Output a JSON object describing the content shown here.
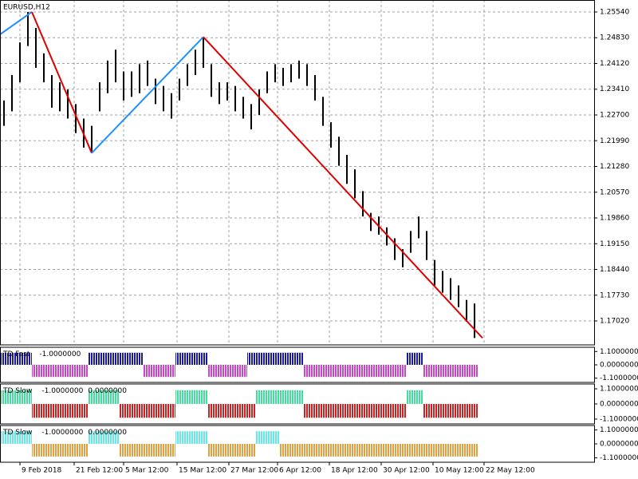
{
  "chart_data": [
    {
      "type": "ohlc",
      "title": "EURUSD,H12",
      "high": [
        1.231,
        1.238,
        1.247,
        1.2554,
        1.251,
        1.244,
        1.238,
        1.236,
        1.234,
        1.23,
        1.226,
        1.224,
        1.236,
        1.242,
        1.245,
        1.239,
        1.239,
        1.241,
        1.242,
        1.237,
        1.235,
        1.233,
        1.237,
        1.241,
        1.245,
        1.2485,
        1.241,
        1.236,
        1.236,
        1.235,
        1.232,
        1.23,
        1.234,
        1.239,
        1.241,
        1.24,
        1.241,
        1.242,
        1.241,
        1.238,
        1.232,
        1.225,
        1.221,
        1.216,
        1.212,
        1.206,
        1.2,
        1.199,
        1.196,
        1.193,
        1.19,
        1.195,
        1.199,
        1.195,
        1.187,
        1.184,
        1.182,
        1.18,
        1.176,
        1.175
      ],
      "low": [
        1.224,
        1.228,
        1.236,
        1.246,
        1.24,
        1.236,
        1.229,
        1.228,
        1.226,
        1.222,
        1.218,
        1.2165,
        1.228,
        1.233,
        1.236,
        1.231,
        1.232,
        1.233,
        1.235,
        1.23,
        1.228,
        1.226,
        1.231,
        1.235,
        1.238,
        1.24,
        1.232,
        1.23,
        1.231,
        1.228,
        1.226,
        1.223,
        1.227,
        1.233,
        1.236,
        1.235,
        1.236,
        1.237,
        1.235,
        1.231,
        1.224,
        1.218,
        1.213,
        1.208,
        1.204,
        1.199,
        1.195,
        1.194,
        1.191,
        1.187,
        1.185,
        1.189,
        1.193,
        1.187,
        1.18,
        1.178,
        1.176,
        1.174,
        1.17,
        1.1655
      ],
      "bar_color": "#000000",
      "zigzag": [
        {
          "color": "#1e90ff",
          "x": [
            -0.5,
            3.5
          ],
          "values": [
            1.2492,
            1.2554
          ]
        },
        {
          "color": "#e00000",
          "x": [
            3.5,
            11
          ],
          "values": [
            1.2554,
            1.2165
          ]
        },
        {
          "color": "#1e90ff",
          "x": [
            11,
            25
          ],
          "values": [
            1.2165,
            1.2485
          ]
        },
        {
          "color": "#e00000",
          "x": [
            25,
            60
          ],
          "values": [
            1.2485,
            1.1655
          ]
        }
      ],
      "xlim": [
        -0.5,
        74
      ],
      "ylim": [
        1.1636,
        1.2587
      ],
      "yticks": [
        {
          "value": 1.2554,
          "label": "1.25540"
        },
        {
          "value": 1.2483,
          "label": "1.24830"
        },
        {
          "value": 1.2412,
          "label": "1.24120"
        },
        {
          "value": 1.2341,
          "label": "1.23410"
        },
        {
          "value": 1.227,
          "label": "1.22700"
        },
        {
          "value": 1.2199,
          "label": "1.21990"
        },
        {
          "value": 1.2128,
          "label": "1.21280"
        },
        {
          "value": 1.2057,
          "label": "1.20570"
        },
        {
          "value": 1.1986,
          "label": "1.19860"
        },
        {
          "value": 1.1915,
          "label": "1.19150"
        },
        {
          "value": 1.1844,
          "label": "1.18440"
        },
        {
          "value": 1.1773,
          "label": "1.17730"
        },
        {
          "value": 1.1702,
          "label": "1.17020"
        }
      ],
      "xticks": [
        {
          "value": 2,
          "label": "9 Feb 2018"
        },
        {
          "value": 8.8,
          "label": "21 Feb 12:00"
        },
        {
          "value": 15,
          "label": "5 Mar 12:00"
        },
        {
          "value": 21.7,
          "label": "15 Mar 12:00"
        },
        {
          "value": 28.2,
          "label": "27 Mar 12:00"
        },
        {
          "value": 34.3,
          "label": "6 Apr 12:00"
        },
        {
          "value": 40.8,
          "label": "18 Apr 12:00"
        },
        {
          "value": 47.3,
          "label": "30 Apr 12:00"
        },
        {
          "value": 53.8,
          "label": "10 May 12:00"
        },
        {
          "value": 60.2,
          "label": "22 May 12:00"
        }
      ],
      "grid": true
    },
    {
      "type": "histogram",
      "title": "TD Fast",
      "readouts": [
        "-1.0000000"
      ],
      "values": [
        1,
        1,
        1,
        1,
        -1,
        -1,
        -1,
        -1,
        -1,
        -1,
        -1,
        1,
        1,
        1,
        1,
        1,
        1,
        1,
        -1,
        -1,
        -1,
        -1,
        1,
        1,
        1,
        1,
        -1,
        -1,
        -1,
        -1,
        -1,
        1,
        1,
        1,
        1,
        1,
        1,
        1,
        -1,
        -1,
        -1,
        -1,
        -1,
        -1,
        -1,
        -1,
        -1,
        -1,
        -1,
        -1,
        -1,
        1,
        1,
        -1,
        -1,
        -1,
        -1,
        -1,
        -1,
        -1
      ],
      "up_color": "#1a1aa0",
      "down_color": "#cc44cc",
      "ylim": [
        -1.45,
        1.45
      ],
      "yticks": [
        {
          "value": 1.1,
          "label": "1.1000000"
        },
        {
          "value": 0,
          "label": "0.0000000"
        },
        {
          "value": -1.1,
          "label": "-1.1000000"
        }
      ]
    },
    {
      "type": "histogram",
      "title": "TD Slow",
      "readouts": [
        "-1.0000000",
        "0.0000000"
      ],
      "values": [
        1,
        1,
        1,
        1,
        -1,
        -1,
        -1,
        -1,
        -1,
        -1,
        -1,
        1,
        1,
        1,
        1,
        -1,
        -1,
        -1,
        -1,
        -1,
        -1,
        -1,
        1,
        1,
        1,
        1,
        -1,
        -1,
        -1,
        -1,
        -1,
        -1,
        1,
        1,
        1,
        1,
        1,
        1,
        -1,
        -1,
        -1,
        -1,
        -1,
        -1,
        -1,
        -1,
        -1,
        -1,
        -1,
        -1,
        -1,
        1,
        1,
        -1,
        -1,
        -1,
        -1,
        -1,
        -1,
        -1
      ],
      "up_color": "#44dda0",
      "down_color": "#cc2222",
      "ylim": [
        -1.45,
        1.45
      ],
      "yticks": [
        {
          "value": 1.1,
          "label": "1.1000000"
        },
        {
          "value": 0,
          "label": "0.0000000"
        },
        {
          "value": -1.1,
          "label": "-1.1000000"
        }
      ]
    },
    {
      "type": "histogram",
      "title": "TD Slow",
      "readouts": [
        "-1.0000000",
        "0.0000000"
      ],
      "values": [
        1,
        1,
        1,
        1,
        -1,
        -1,
        -1,
        -1,
        -1,
        -1,
        -1,
        1,
        1,
        1,
        1,
        -1,
        -1,
        -1,
        -1,
        -1,
        -1,
        -1,
        1,
        1,
        1,
        1,
        -1,
        -1,
        -1,
        -1,
        -1,
        -1,
        1,
        1,
        1,
        -1,
        -1,
        -1,
        -1,
        -1,
        -1,
        -1,
        -1,
        -1,
        -1,
        -1,
        -1,
        -1,
        -1,
        -1,
        -1,
        -1,
        -1,
        -1,
        -1,
        -1,
        -1,
        -1,
        -1,
        -1
      ],
      "up_color": "#66e8e8",
      "down_color": "#e0a040",
      "ylim": [
        -1.45,
        1.45
      ],
      "yticks": [
        {
          "value": 1.1,
          "label": "1.1000000"
        },
        {
          "value": 0,
          "label": "0.0000000"
        },
        {
          "value": -1.1,
          "label": "-1.1000000"
        }
      ]
    }
  ]
}
